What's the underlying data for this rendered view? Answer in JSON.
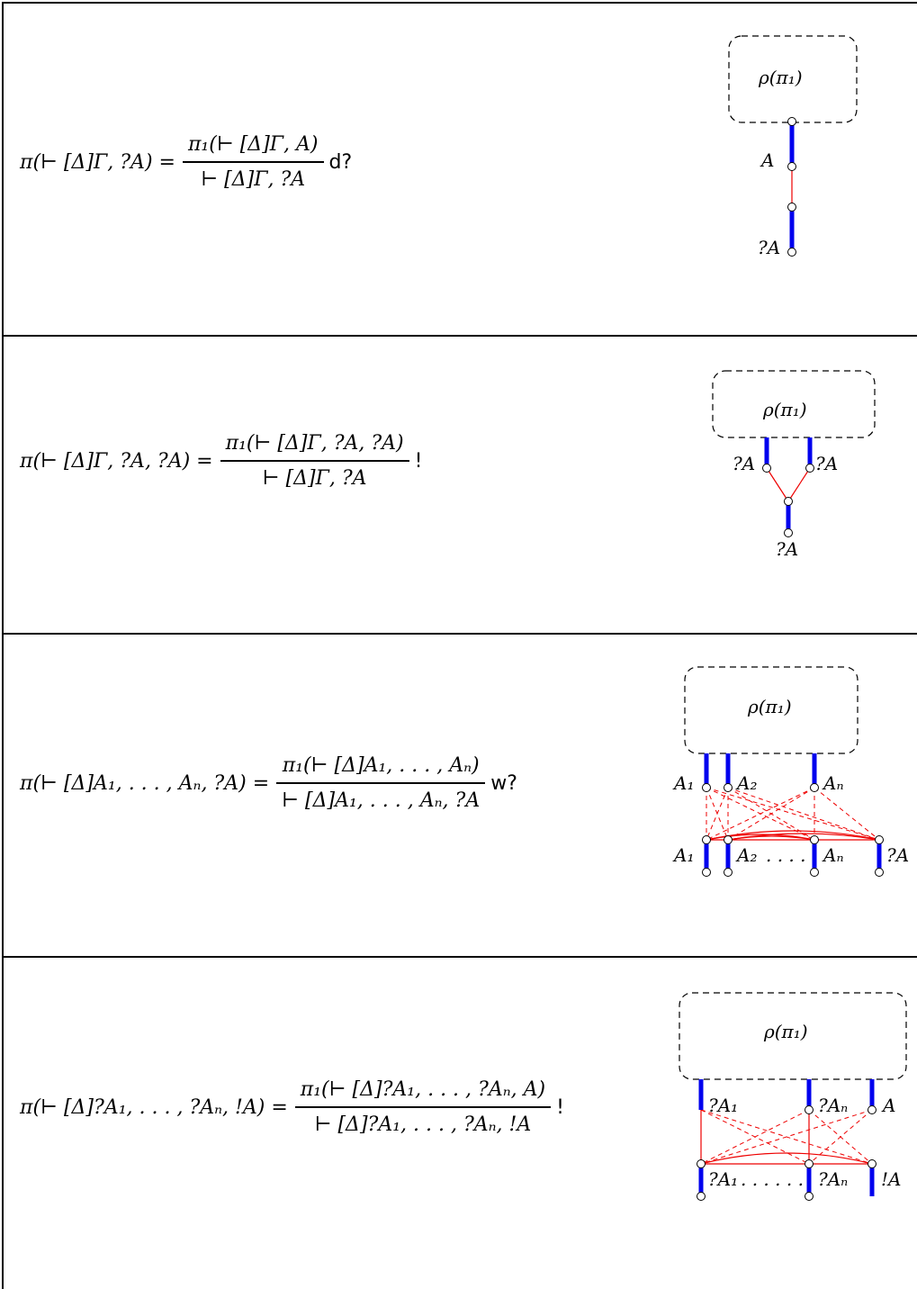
{
  "rows": [
    {
      "lhs": "π(⊢ [Δ]Γ, ?A) =",
      "numerator": "π₁(⊢ [Δ]Γ, A)",
      "denominator": "⊢ [Δ]Γ, ?A",
      "rule": "d?",
      "diagram": {
        "box_label": "ρ(π₁)",
        "labels": [
          "A",
          "?A"
        ]
      }
    },
    {
      "lhs": "π(⊢ [Δ]Γ, ?A, ?A) =",
      "numerator": "π₁(⊢ [Δ]Γ, ?A, ?A)",
      "denominator": "⊢ [Δ]Γ, ?A",
      "rule": "!",
      "diagram": {
        "box_label": "ρ(π₁)",
        "labels": [
          "?A",
          "?A",
          "?A"
        ]
      }
    },
    {
      "lhs": "π(⊢ [Δ]A₁, . . . , Aₙ, ?A) =",
      "numerator": "π₁(⊢ [Δ]A₁, . . . , Aₙ)",
      "denominator": "⊢ [Δ]A₁, . . . , Aₙ, ?A",
      "rule": "w?",
      "diagram": {
        "box_label": "ρ(π₁)",
        "labels": [
          "A₁",
          "A₂",
          "Aₙ",
          "A₁",
          "A₂",
          ". . . .",
          "Aₙ",
          "?A"
        ]
      }
    },
    {
      "lhs": "π(⊢ [Δ]?A₁, . . . , ?Aₙ, !A) =",
      "numerator": "π₁(⊢ [Δ]?A₁, . . . , ?Aₙ, A)",
      "denominator": "⊢ [Δ]?A₁, . . . , ?Aₙ, !A",
      "rule": "!",
      "diagram": {
        "box_label": "ρ(π₁)",
        "labels": [
          "?A₁",
          "?Aₙ",
          "A",
          "?A₁",
          ". . . . . .",
          "?Aₙ",
          "!A"
        ]
      }
    }
  ],
  "colors": {
    "wire": "#0000ee",
    "link": "#ee0000",
    "stroke": "#000000"
  }
}
